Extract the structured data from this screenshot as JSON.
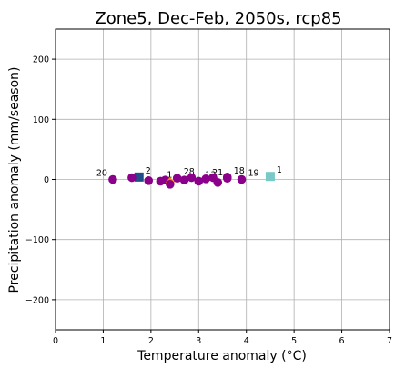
{
  "chart_data": {
    "type": "scatter",
    "title": "Zone5, Dec-Feb, 2050s, rcp85",
    "xlabel": "Temperature anomaly ($^\\circ$C)",
    "xlabel_display": "Temperature anomaly (°C)",
    "ylabel": "Precipitation anomaly (mm/season)",
    "xlim": [
      0,
      7
    ],
    "ylim": [
      -250,
      250
    ],
    "x_ticks": [
      0,
      1,
      2,
      3,
      4,
      5,
      6,
      7
    ],
    "y_ticks": [
      -200,
      -100,
      0,
      100,
      200
    ],
    "x_tick_labels": [
      "0",
      "1",
      "2",
      "3",
      "4",
      "5",
      "6",
      "7"
    ],
    "y_tick_labels": [
      "−200",
      "−100",
      "0",
      "100",
      "200"
    ],
    "grid": true,
    "colors": {
      "purple": "#8b008b",
      "navy": "#1f4e89",
      "teal": "#79c9c9",
      "orange": "#ff7f0e",
      "grid": "#b0b0b0"
    },
    "points": [
      {
        "label": "1",
        "x": 4.5,
        "y": 5,
        "marker": "square",
        "color": "#79c9c9"
      },
      {
        "label": "2",
        "x": 1.75,
        "y": 4,
        "marker": "square",
        "color": "#1f4e89"
      },
      {
        "label": "20",
        "x": 1.2,
        "y": 0,
        "marker": "circle",
        "color": "#8b008b"
      },
      {
        "label": "19",
        "x": 3.9,
        "y": 0,
        "marker": "circle",
        "color": "#8b008b"
      },
      {
        "label": "18",
        "x": 3.6,
        "y": 4,
        "marker": "circle",
        "color": "#8b008b"
      },
      {
        "label": "",
        "x": 1.6,
        "y": 3,
        "marker": "circle",
        "color": "#8b008b"
      },
      {
        "label": "",
        "x": 1.95,
        "y": -2,
        "marker": "circle",
        "color": "#8b008b"
      },
      {
        "label": "1",
        "x": 2.2,
        "y": -3,
        "marker": "circle",
        "color": "#8b008b"
      },
      {
        "label": "",
        "x": 2.3,
        "y": -1,
        "marker": "circle",
        "color": "#8b008b"
      },
      {
        "label": "",
        "x": 2.4,
        "y": -5,
        "marker": "diamond",
        "color": "#ff7f0e"
      },
      {
        "label": "",
        "x": 2.4,
        "y": -8,
        "marker": "circle",
        "color": "#8b008b"
      },
      {
        "label": "28",
        "x": 2.55,
        "y": 2,
        "marker": "circle",
        "color": "#8b008b"
      },
      {
        "label": "",
        "x": 2.7,
        "y": -1,
        "marker": "circle",
        "color": "#8b008b"
      },
      {
        "label": "",
        "x": 2.85,
        "y": 3,
        "marker": "circle",
        "color": "#8b008b"
      },
      {
        "label": "13",
        "x": 3.0,
        "y": -3,
        "marker": "circle",
        "color": "#8b008b"
      },
      {
        "label": "21",
        "x": 3.15,
        "y": 1,
        "marker": "circle",
        "color": "#8b008b"
      },
      {
        "label": "",
        "x": 3.3,
        "y": 3,
        "marker": "circle",
        "color": "#8b008b"
      },
      {
        "label": "",
        "x": 3.4,
        "y": -5,
        "marker": "circle",
        "color": "#8b008b"
      },
      {
        "label": "",
        "x": 3.6,
        "y": 2,
        "marker": "circle",
        "color": "#8b008b"
      }
    ]
  }
}
